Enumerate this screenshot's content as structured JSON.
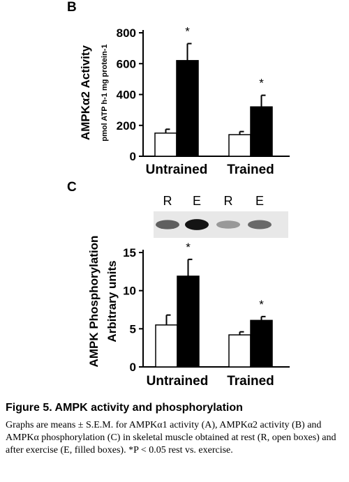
{
  "panel_b": {
    "letter": "B"
  },
  "panel_c": {
    "letter": "C"
  },
  "blot": {
    "lanes": [
      "R",
      "E",
      "R",
      "E"
    ],
    "intensities": [
      0.55,
      0.95,
      0.25,
      0.5
    ]
  },
  "caption": {
    "title": "Figure 5. AMPK activity and phosphorylation",
    "body": "Graphs are means ± S.E.M. for AMPKα1 activity (A), AMPKα2 activity (B) and AMPKα phosphorylation (C) in skeletal muscle obtained at rest (R, open boxes) and after exercise (E, filled boxes). *P < 0.05 rest vs. exercise."
  },
  "colors": {
    "rest_fill": "#ffffff",
    "exercise_fill": "#000000",
    "axis": "#000000"
  },
  "chart_data": [
    {
      "type": "bar",
      "panel": "B",
      "categories": [
        "Untrained",
        "Trained"
      ],
      "ylabel": "AMPKα2 Activity",
      "ylabel_sub": "pmol ATP h-1 mg protein-1",
      "ylim": [
        0,
        800
      ],
      "yticks": [
        0,
        200,
        400,
        600,
        800
      ],
      "series": [
        {
          "values": [
            150,
            140
          ],
          "errors": [
            25,
            20
          ],
          "fill": "#ffffff"
        },
        {
          "values": [
            620,
            320
          ],
          "errors": [
            110,
            75
          ],
          "fill": "#000000"
        }
      ],
      "annotations": [
        {
          "category": 0,
          "series": 1,
          "text": "*"
        },
        {
          "category": 1,
          "series": 1,
          "text": "*"
        }
      ]
    },
    {
      "type": "bar",
      "panel": "C",
      "categories": [
        "Untrained",
        "Trained"
      ],
      "ylabel": "AMPK Phosphorylation",
      "ylabel_sub": "Arbitrary units",
      "ylim": [
        0,
        15
      ],
      "yticks": [
        0,
        5,
        10,
        15
      ],
      "series": [
        {
          "values": [
            5.5,
            4.2
          ],
          "errors": [
            1.3,
            0.4
          ],
          "fill": "#ffffff"
        },
        {
          "values": [
            11.9,
            6.1
          ],
          "errors": [
            2.2,
            0.5
          ],
          "fill": "#000000"
        }
      ],
      "annotations": [
        {
          "category": 0,
          "series": 1,
          "text": "*"
        },
        {
          "category": 1,
          "series": 1,
          "text": "*"
        }
      ]
    }
  ]
}
